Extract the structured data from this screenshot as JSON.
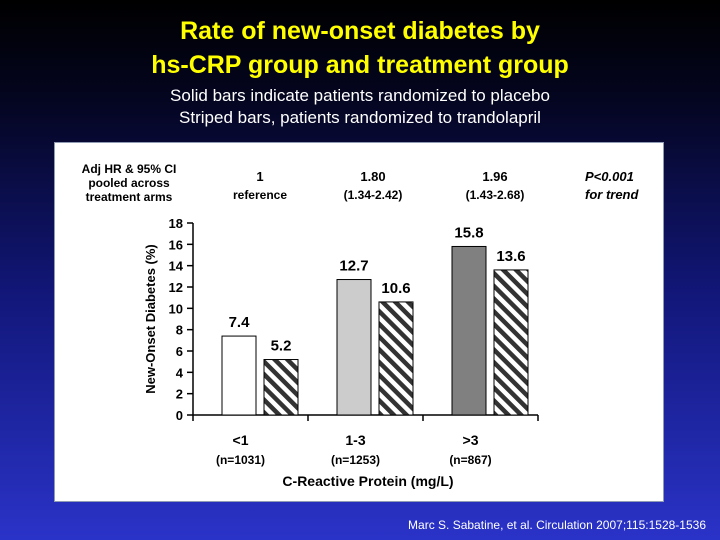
{
  "header": {
    "title_line1": "Rate of new-onset diabetes by",
    "title_line2": "hs-CRP group and treatment group",
    "subtitle_line1": "Solid bars indicate patients randomized to placebo",
    "subtitle_line2": "Striped bars,  patients  randomized  to  trandolapril"
  },
  "citation": "Marc S. Sabatine, et al. Circulation 2007;115:1528-1536",
  "chart_data": {
    "type": "bar",
    "ylabel": "New-Onset Diabetes (%)",
    "xlabel": "C-Reactive Protein (mg/L)",
    "ylim": [
      0,
      18
    ],
    "yticks": [
      0,
      2,
      4,
      6,
      8,
      10,
      12,
      14,
      16,
      18
    ],
    "categories": [
      "<1",
      "1-3",
      ">3"
    ],
    "category_n": [
      "(n=1031)",
      "(n=1253)",
      "(n=867)"
    ],
    "series": [
      {
        "values": [
          7.4,
          12.7,
          15.8
        ],
        "labels": [
          "7.4",
          "12.7",
          "15.8"
        ],
        "fills": [
          "#ffffff",
          "#cccccc",
          "#808080"
        ],
        "pattern": "solid"
      },
      {
        "values": [
          5.2,
          10.6,
          13.6
        ],
        "labels": [
          "5.2",
          "10.6",
          "13.6"
        ],
        "pattern": "striped"
      }
    ],
    "hr_header": [
      "Adj HR & 95% CI",
      "pooled across",
      "treatment arms"
    ],
    "hr_values": [
      {
        "line1": "1",
        "line2": "reference"
      },
      {
        "line1": "1.80",
        "line2": "(1.34-2.42)"
      },
      {
        "line1": "1.96",
        "line2": "(1.43-2.68)"
      }
    ],
    "trend": {
      "line1": "P<0.001",
      "line2": "for trend"
    }
  }
}
